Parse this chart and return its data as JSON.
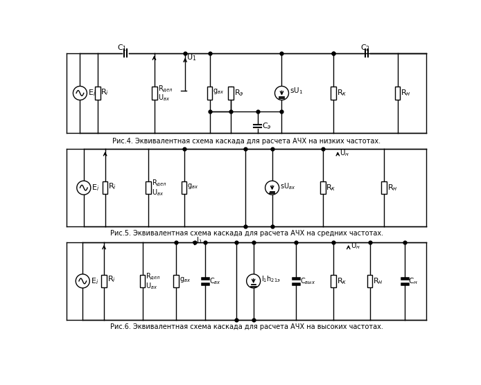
{
  "caption1": "Рис.4. Эквивалентная схема каскада для расчета АЧХ на низких частотах.",
  "caption2": "Рис.5. Эквивалентная схема каскада для расчета АЧХ на средних частотах.",
  "caption3": "Рис.6. Эквивалентная схема каскада для расчета АЧХ на высоких частотах.",
  "bg_color": "#ffffff",
  "line_color": "#000000",
  "lw": 1.0,
  "font_size_caption": 7.0,
  "font_size_label": 7.5,
  "font_size_small": 6.5
}
